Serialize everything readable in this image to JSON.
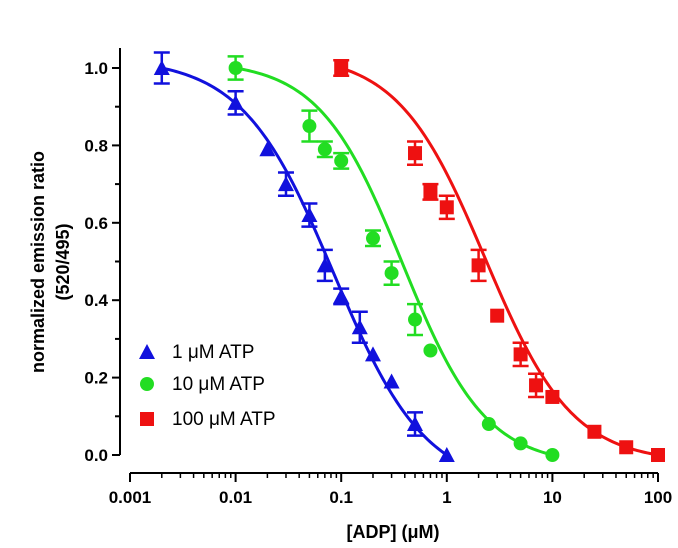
{
  "chart_data": {
    "type": "scatter",
    "title": "",
    "xlabel": "[ADP] (μM)",
    "ylabel_line1": "normalized emission ratio",
    "ylabel_line2": "(520/495)",
    "xscale": "log",
    "xlim": [
      0.001,
      100
    ],
    "ylim": [
      0.0,
      1.05
    ],
    "x_ticks": [
      {
        "value": 0.001,
        "label": "0.001"
      },
      {
        "value": 0.01,
        "label": "0.01"
      },
      {
        "value": 0.1,
        "label": "0.1"
      },
      {
        "value": 1,
        "label": "1"
      },
      {
        "value": 10,
        "label": "10"
      },
      {
        "value": 100,
        "label": "100"
      }
    ],
    "y_ticks": [
      {
        "value": 0.0,
        "label": "0.0"
      },
      {
        "value": 0.2,
        "label": "0.2"
      },
      {
        "value": 0.4,
        "label": "0.4"
      },
      {
        "value": 0.6,
        "label": "0.6"
      },
      {
        "value": 0.8,
        "label": "0.8"
      },
      {
        "value": 1.0,
        "label": "1.0"
      }
    ],
    "grid": false,
    "legend_position": "bottom-left",
    "series": [
      {
        "name": "1 μM ATP",
        "marker": "triangle",
        "color": "#1111dd",
        "fit_ec50": 0.085,
        "fit_hill": 1.0,
        "x": [
          0.002,
          0.01,
          0.02,
          0.03,
          0.05,
          0.07,
          0.1,
          0.15,
          0.2,
          0.3,
          0.5,
          1.0
        ],
        "y": [
          1.0,
          0.91,
          0.79,
          0.7,
          0.62,
          0.49,
          0.41,
          0.33,
          0.26,
          0.19,
          0.08,
          0.0
        ],
        "err": [
          0.04,
          0.03,
          0.0,
          0.03,
          0.03,
          0.04,
          0.02,
          0.04,
          0.0,
          0.0,
          0.03,
          0.0
        ]
      },
      {
        "name": "10 μM ATP",
        "marker": "circle",
        "color": "#22dd22",
        "fit_ec50": 0.38,
        "fit_hill": 1.1,
        "x": [
          0.01,
          0.05,
          0.07,
          0.1,
          0.2,
          0.3,
          0.5,
          0.7,
          2.5,
          5.0,
          10.0
        ],
        "y": [
          1.0,
          0.85,
          0.79,
          0.76,
          0.56,
          0.47,
          0.35,
          0.27,
          0.08,
          0.03,
          0.0
        ],
        "err": [
          0.03,
          0.04,
          0.02,
          0.02,
          0.02,
          0.03,
          0.04,
          0.0,
          0.0,
          0.0,
          0.0
        ]
      },
      {
        "name": "100 μM ATP",
        "marker": "square",
        "color": "#ee1111",
        "fit_ec50": 2.3,
        "fit_hill": 1.05,
        "x": [
          0.1,
          0.5,
          0.7,
          1.0,
          2.0,
          3.0,
          5.0,
          7.0,
          10.0,
          25.0,
          50.0,
          100.0
        ],
        "y": [
          1.0,
          0.78,
          0.68,
          0.64,
          0.49,
          0.36,
          0.26,
          0.18,
          0.15,
          0.06,
          0.02,
          0.0
        ],
        "err": [
          0.02,
          0.03,
          0.02,
          0.03,
          0.04,
          0.0,
          0.03,
          0.03,
          0.0,
          0.0,
          0.0,
          0.0
        ]
      }
    ]
  }
}
